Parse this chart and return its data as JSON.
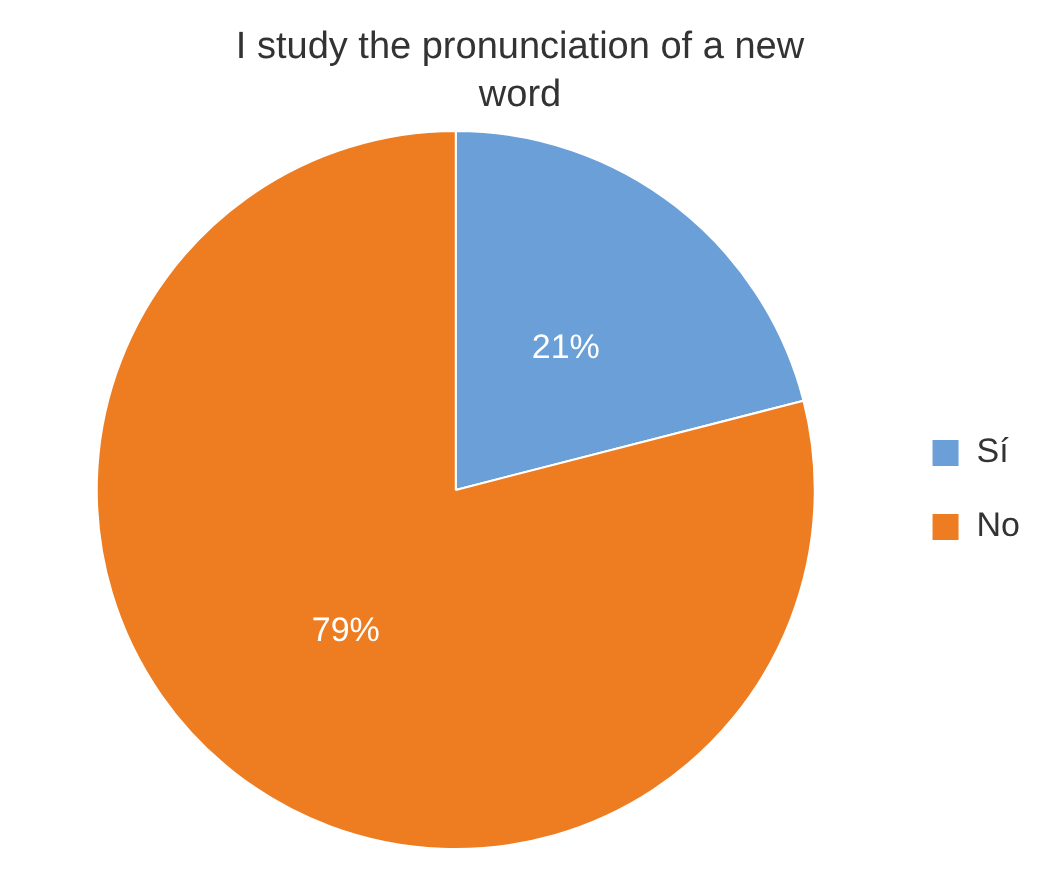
{
  "chart_data": {
    "type": "pie",
    "title": "I study the pronunciation of a new word",
    "categories": [
      "Sí",
      "No"
    ],
    "values": [
      21,
      79
    ],
    "colors": [
      "#6a9fd8",
      "#ee7d22"
    ],
    "value_labels": [
      "21%",
      "79%"
    ],
    "legend": "right"
  }
}
